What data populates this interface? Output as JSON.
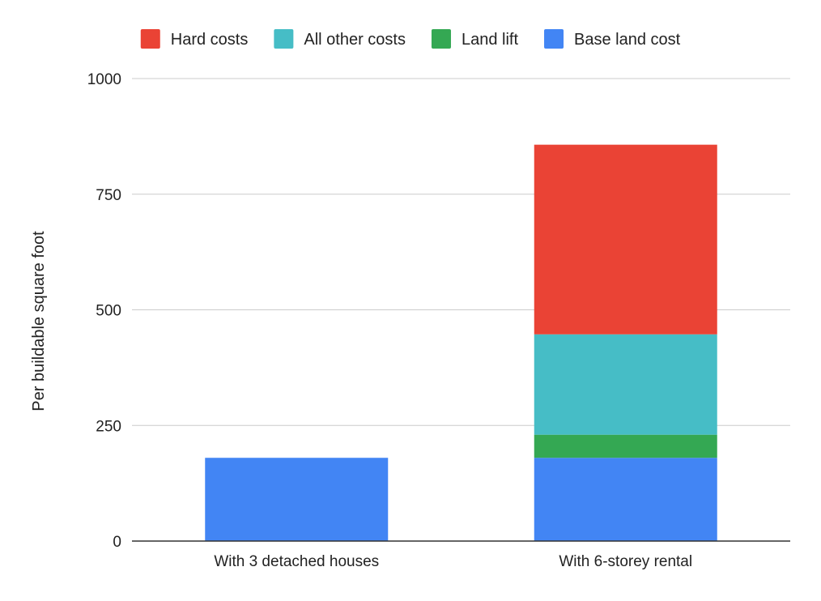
{
  "chart_data": {
    "type": "bar",
    "stacked": true,
    "title": "",
    "xlabel": "",
    "ylabel": "Per buildable square foot",
    "ylim": [
      0,
      1000
    ],
    "yticks": [
      "0",
      "250",
      "500",
      "750",
      "1000"
    ],
    "grid": true,
    "legend_position": "top",
    "categories": [
      "With 3 detached houses",
      "With 6-storey rental"
    ],
    "series": [
      {
        "name": "Base land cost",
        "color": "#4285f4",
        "values": [
          180,
          180
        ]
      },
      {
        "name": "Land lift",
        "color": "#34a853",
        "values": [
          0,
          50
        ]
      },
      {
        "name": "All other costs",
        "color": "#46bdc6",
        "values": [
          0,
          217
        ]
      },
      {
        "name": "Hard costs",
        "color": "#ea4335",
        "values": [
          0,
          410
        ]
      }
    ],
    "legend_order": [
      "Hard costs",
      "All other costs",
      "Land lift",
      "Base land cost"
    ]
  }
}
